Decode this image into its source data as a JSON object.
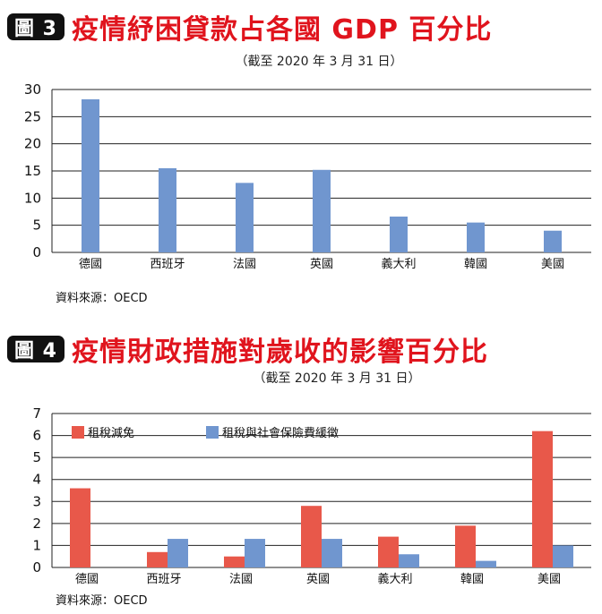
{
  "source_label": "資料來源：OECD",
  "colors": {
    "title_red": "#e0141d",
    "bar_blue": "#7096cf",
    "bar_red": "#e8584a"
  },
  "chart_data": [
    {
      "type": "bar",
      "badge": "圖 3",
      "title": "疫情紓困貸款占各國 GDP 百分比",
      "subtitle": "（截至 2020 年 3 月 31 日）",
      "categories": [
        "德國",
        "西班牙",
        "法國",
        "英國",
        "義大利",
        "韓國",
        "美國"
      ],
      "series": [
        {
          "values": [
            28.2,
            15.5,
            12.8,
            15.2,
            6.6,
            5.5,
            4.0
          ]
        }
      ],
      "ylim": [
        0,
        30
      ],
      "yticks": [
        0,
        5,
        10,
        15,
        20,
        25,
        30
      ],
      "grid": true,
      "legend": "none"
    },
    {
      "type": "bar",
      "badge": "圖 4",
      "title": "疫情財政措施對歲收的影響百分比",
      "subtitle": "（截至 2020 年 3 月 31 日）",
      "categories": [
        "德國",
        "西班牙",
        "法國",
        "英國",
        "義大利",
        "韓國",
        "美國"
      ],
      "series": [
        {
          "name": "租稅減免",
          "values": [
            3.6,
            0.7,
            0.5,
            2.8,
            1.4,
            1.9,
            6.2
          ]
        },
        {
          "name": "租稅與社會保險費緩徵",
          "values": [
            0,
            1.3,
            1.3,
            1.3,
            0.6,
            0.3,
            1.0
          ]
        }
      ],
      "ylim": [
        0,
        7
      ],
      "yticks": [
        0,
        1,
        2,
        3,
        4,
        5,
        6,
        7
      ],
      "grid": true,
      "legend": "top-left"
    }
  ]
}
